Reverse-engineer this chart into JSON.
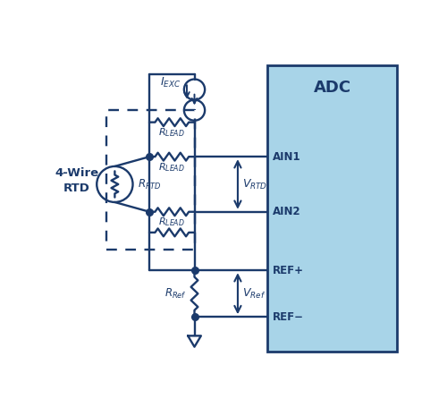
{
  "bg_color": "#ffffff",
  "dark_blue": "#1b3a6b",
  "adc_fill": "#a8d4e8",
  "adc_stroke": "#1b3a6b",
  "lc": "#1b3a6b",
  "lw": 1.7,
  "texts": {
    "adc": "ADC",
    "ain1": "AIN1",
    "ain2": "AIN2",
    "refp": "REF+",
    "refm": "REF−",
    "iexc": "$I_{EXC}$",
    "rlead": "$R_{LEAD}$",
    "rrtd": "$R_{RTD}$",
    "rref": "$R_{Ref}$",
    "vrtd": "$V_{RTD}$",
    "vref": "$V_{Ref}$",
    "wire4": "4-Wire\nRTD"
  },
  "layout": {
    "xA": 6.1,
    "xR": 4.0,
    "xL": 2.7,
    "xRTD": 1.7,
    "xADC": 6.1,
    "yTop": 8.6,
    "yCS": 7.85,
    "yDashTop": 7.55,
    "yRL1": 7.2,
    "yAIN1": 6.2,
    "yAIN2": 4.6,
    "yRL2b": 4.0,
    "yDashBot": 3.5,
    "yREFP": 2.9,
    "yREFM": 1.55,
    "yGnd": 1.0,
    "csR": 0.3,
    "rtdR": 0.52
  }
}
